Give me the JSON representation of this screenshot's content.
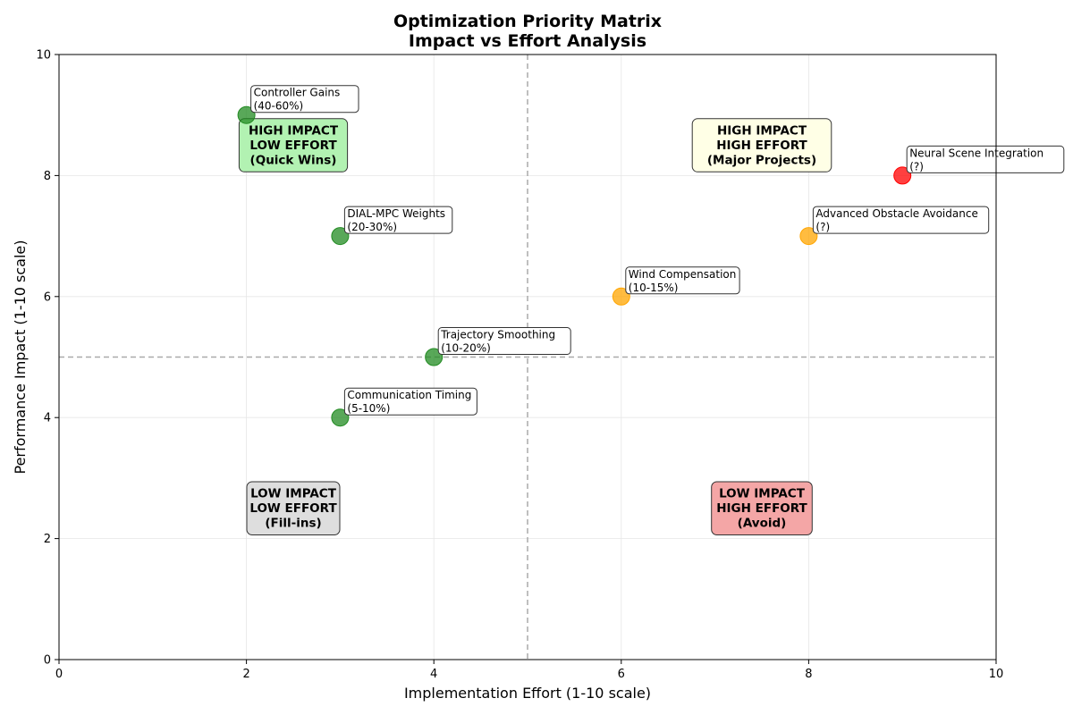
{
  "chart_data": {
    "type": "scatter",
    "title": [
      "Optimization Priority Matrix",
      "Impact vs Effort Analysis"
    ],
    "xlabel": "Implementation Effort (1-10 scale)",
    "ylabel": "Performance Impact (1-10 scale)",
    "xlim": [
      0,
      10
    ],
    "ylim": [
      0,
      10
    ],
    "xticks": [
      0,
      2,
      4,
      6,
      8,
      10
    ],
    "yticks": [
      0,
      2,
      4,
      6,
      8,
      10
    ],
    "grid": true,
    "divider_x": 5,
    "divider_y": 5,
    "points": [
      {
        "label": [
          "Controller Gains",
          "(40-60%)"
        ],
        "x": 2,
        "y": 9,
        "color": "#228B22"
      },
      {
        "label": [
          "DIAL-MPC Weights",
          "(20-30%)"
        ],
        "x": 3,
        "y": 7,
        "color": "#228B22"
      },
      {
        "label": [
          "Trajectory Smoothing",
          "(10-20%)"
        ],
        "x": 4,
        "y": 5,
        "color": "#228B22"
      },
      {
        "label": [
          "Communication Timing",
          "(5-10%)"
        ],
        "x": 3,
        "y": 4,
        "color": "#228B22"
      },
      {
        "label": [
          "Wind Compensation",
          "(10-15%)"
        ],
        "x": 6,
        "y": 6,
        "color": "#FFA500"
      },
      {
        "label": [
          "Advanced Obstacle Avoidance",
          "(?)"
        ],
        "x": 8,
        "y": 7,
        "color": "#FFA500"
      },
      {
        "label": [
          "Neural Scene Integration",
          "(?)"
        ],
        "x": 9,
        "y": 8,
        "color": "#FF0000"
      }
    ],
    "quadrants": [
      {
        "lines": [
          "HIGH IMPACT",
          "LOW EFFORT",
          "(Quick Wins)"
        ],
        "x": 2.5,
        "y": 8.5,
        "color": "#B2F2B2"
      },
      {
        "lines": [
          "HIGH IMPACT",
          "HIGH EFFORT",
          "(Major Projects)"
        ],
        "x": 7.5,
        "y": 8.5,
        "color": "#FFFFE6"
      },
      {
        "lines": [
          "LOW IMPACT",
          "LOW EFFORT",
          "(Fill-ins)"
        ],
        "x": 2.5,
        "y": 2.5,
        "color": "#DEDEDE"
      },
      {
        "lines": [
          "LOW IMPACT",
          "HIGH EFFORT",
          "(Avoid)"
        ],
        "x": 7.5,
        "y": 2.5,
        "color": "#F4A6A6"
      }
    ]
  }
}
